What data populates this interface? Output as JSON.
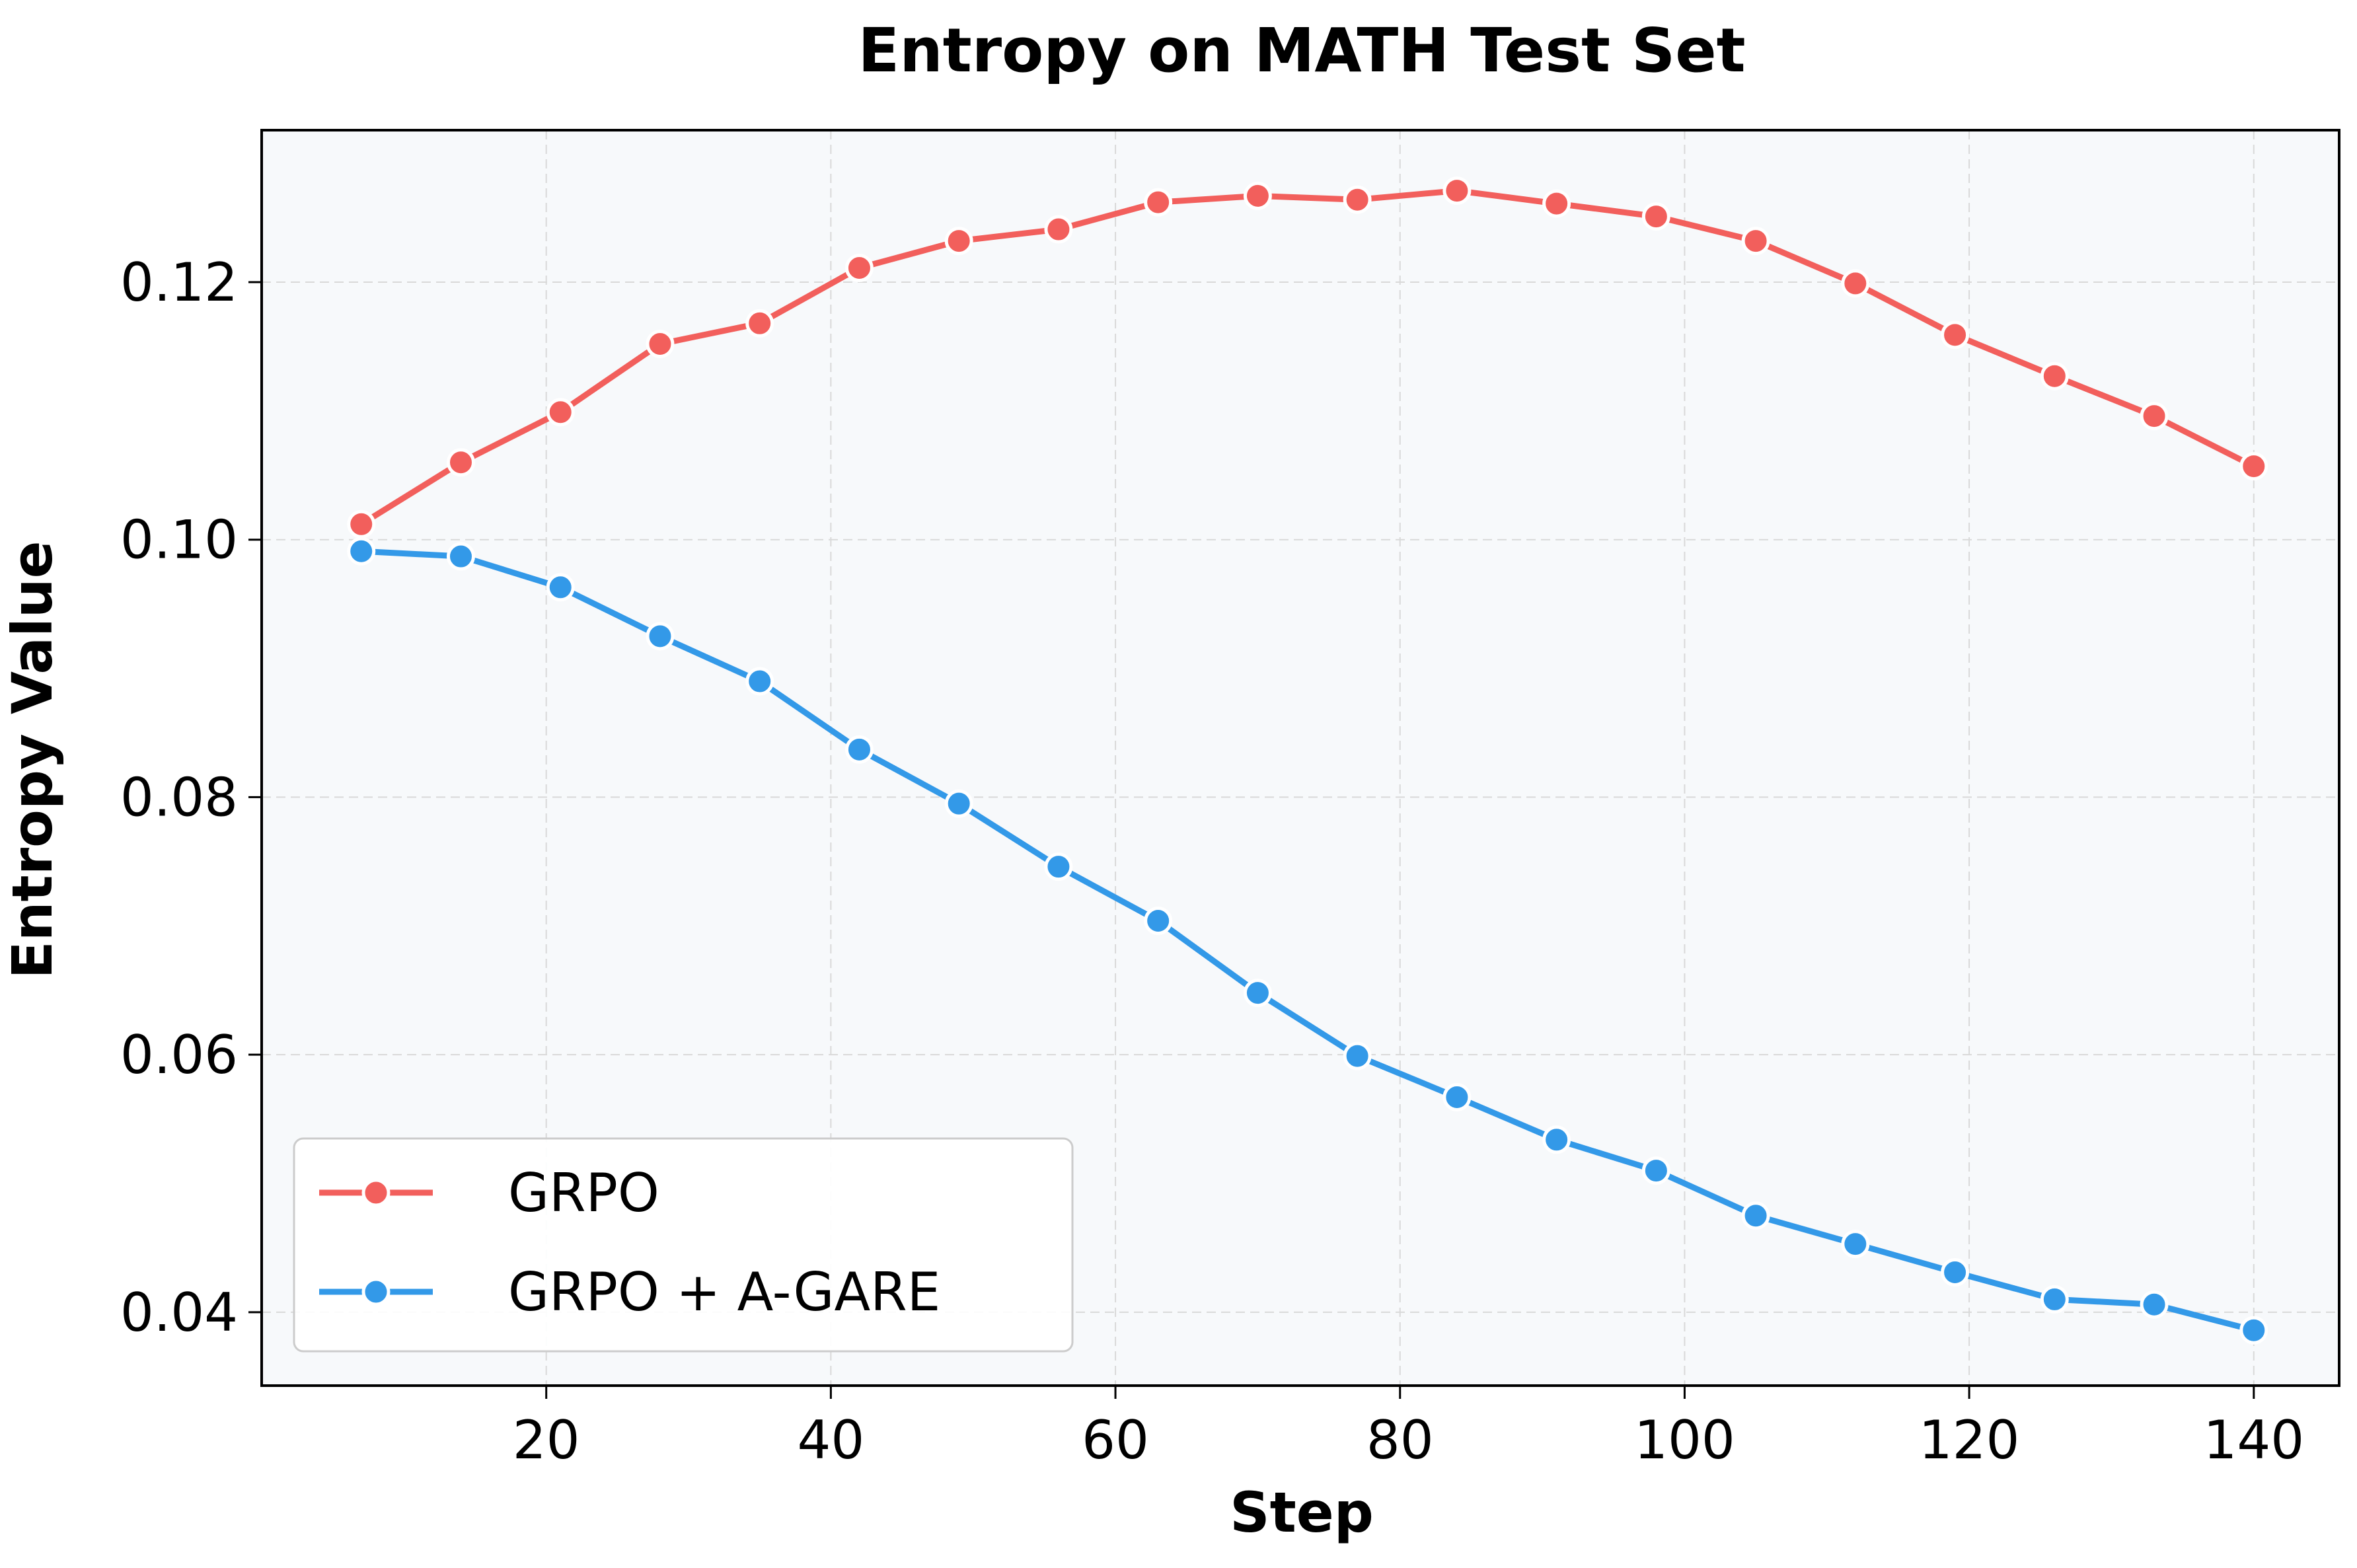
{
  "chart_data": {
    "type": "line",
    "title": "Entropy on MATH Test Set",
    "xlabel": "Step",
    "ylabel": "Entropy Value",
    "xlim": [
      0,
      146
    ],
    "ylim": [
      0.0343,
      0.1318
    ],
    "xticks": [
      20,
      40,
      60,
      80,
      100,
      120,
      140
    ],
    "xtick_labels": [
      "20",
      "40",
      "60",
      "80",
      "100",
      "120",
      "140"
    ],
    "yticks": [
      0.04,
      0.06,
      0.08,
      0.1,
      0.12
    ],
    "ytick_labels": [
      "0.04",
      "0.06",
      "0.08",
      "0.10",
      "0.12"
    ],
    "grid": true,
    "legend_position": "lower-left",
    "x": [
      7,
      14,
      21,
      28,
      35,
      42,
      49,
      56,
      63,
      70,
      77,
      84,
      91,
      98,
      105,
      112,
      119,
      126,
      133,
      140
    ],
    "series": [
      {
        "name": "GRPO",
        "color": "#f25f5c",
        "values": [
          0.1012,
          0.106,
          0.1099,
          0.1152,
          0.1168,
          0.1211,
          0.1232,
          0.1241,
          0.1262,
          0.1267,
          0.1264,
          0.1271,
          0.1261,
          0.1251,
          0.1232,
          0.1199,
          0.1159,
          0.1127,
          0.1096,
          0.1057
        ]
      },
      {
        "name": "GRPO + A-GARE",
        "color": "#3399e8",
        "values": [
          0.0991,
          0.0987,
          0.0963,
          0.0925,
          0.089,
          0.0837,
          0.0795,
          0.0746,
          0.0704,
          0.0648,
          0.0599,
          0.0567,
          0.0534,
          0.051,
          0.0475,
          0.0453,
          0.0431,
          0.041,
          0.0406,
          0.0386
        ]
      }
    ]
  }
}
